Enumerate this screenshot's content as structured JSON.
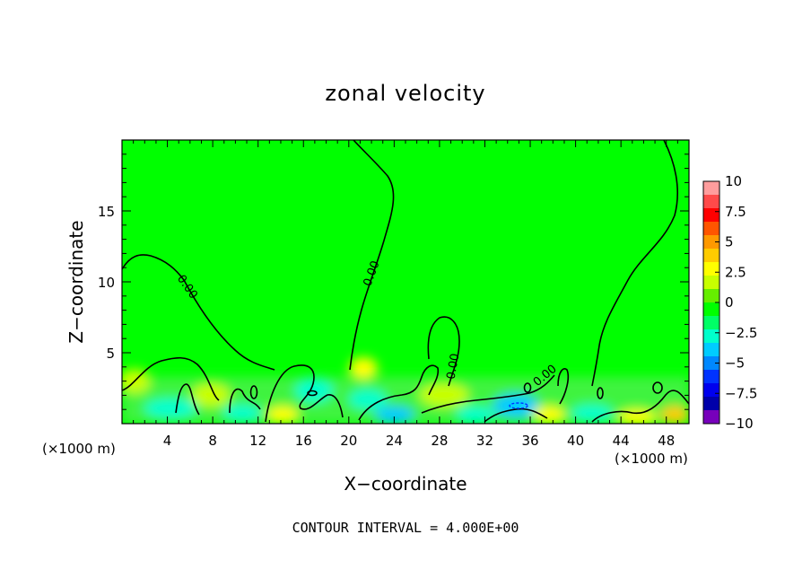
{
  "chart_data": {
    "type": "heatmap",
    "title": "zonal velocity",
    "xlabel": "X−coordinate",
    "ylabel": "Z−coordinate",
    "x_unit_label": "(×1000 m)",
    "y_unit_label": "(×1000 m)",
    "xlim": [
      0,
      50
    ],
    "ylim": [
      0,
      20
    ],
    "x_ticks": [
      4,
      8,
      12,
      16,
      20,
      24,
      28,
      32,
      36,
      40,
      44,
      48
    ],
    "y_ticks": [
      5,
      10,
      15
    ],
    "colorbar": {
      "range": [
        -10,
        10
      ],
      "ticks": [
        "10",
        "7.5",
        "5",
        "2.5",
        "0",
        "−2.5",
        "−5",
        "−7.5",
        "−10"
      ],
      "colors": [
        "#ff9d9d",
        "#ff4a4a",
        "#ff0000",
        "#ff5500",
        "#ff9900",
        "#ffcc00",
        "#ffff00",
        "#c8ff00",
        "#66ee00",
        "#00ff00",
        "#00ff66",
        "#00ffcc",
        "#00ccff",
        "#0088ff",
        "#0033ff",
        "#0000ee",
        "#0000aa",
        "#7700bb"
      ]
    },
    "background_value": 0,
    "contour_labels": [
      {
        "text": "0.00",
        "x": 5.5,
        "z": 9.5,
        "angle": 55
      },
      {
        "text": "0.00",
        "x": 22.3,
        "z": 10.5,
        "angle": -70
      },
      {
        "text": "0.00",
        "x": 29.5,
        "z": 4.0,
        "angle": -80
      },
      {
        "text": "0.00",
        "x": 37.5,
        "z": 3.2,
        "angle": -40
      }
    ],
    "contour_interval_text": "CONTOUR INTERVAL = 4.000E+00"
  }
}
